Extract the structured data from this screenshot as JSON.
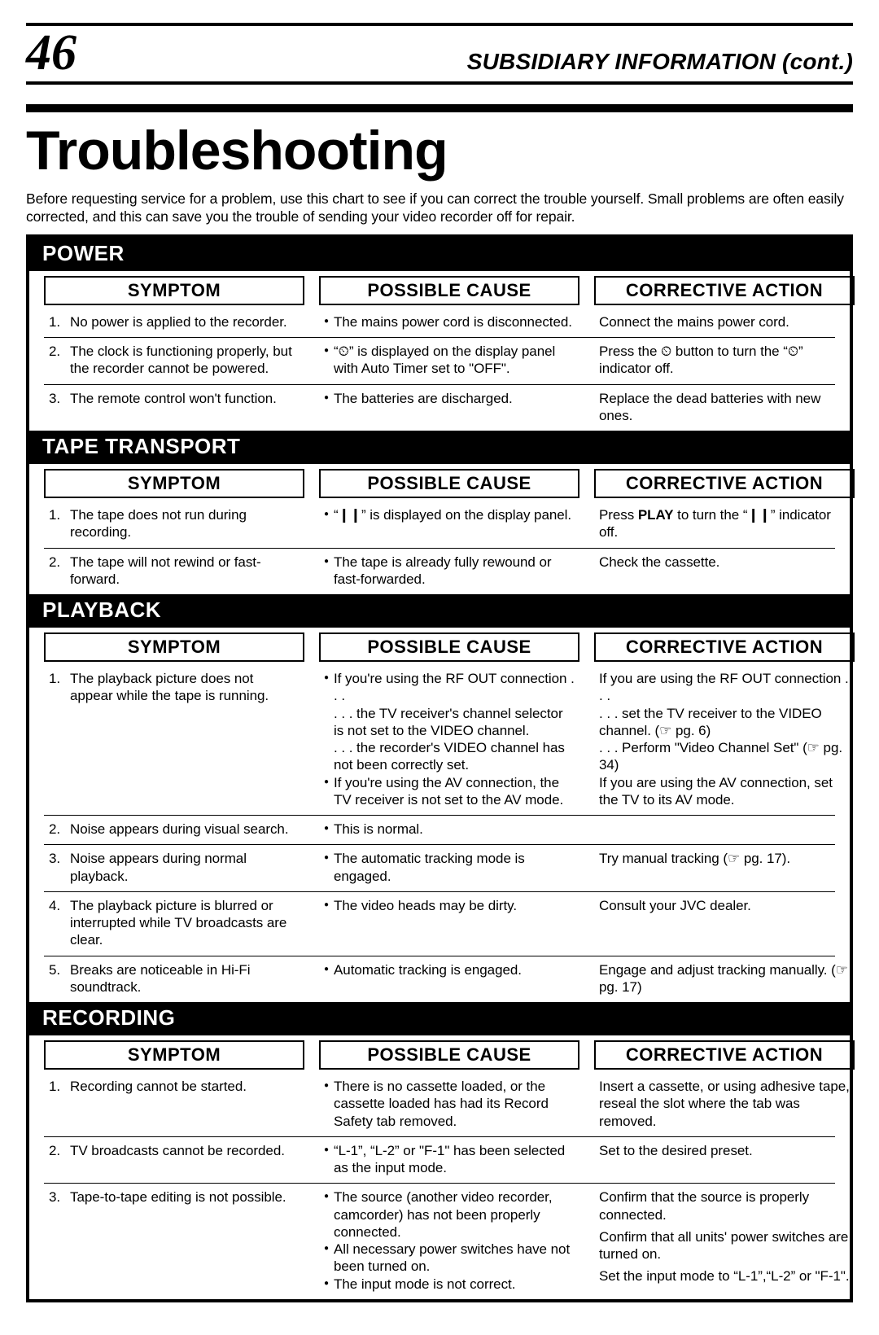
{
  "page_number": "46",
  "section_header": "SUBSIDIARY INFORMATION (cont.)",
  "title": "Troubleshooting",
  "intro": "Before requesting service for a problem, use this chart to see if you can correct the trouble yourself. Small problems are often easily corrected, and this can save you the trouble of sending your video recorder off for repair.",
  "column_labels": {
    "symptom": "SYMPTOM",
    "cause": "POSSIBLE CAUSE",
    "action": "CORRECTIVE ACTION"
  },
  "icons": {
    "timer": "⏲",
    "pause": "❙❙",
    "ref": "☞"
  },
  "categories": [
    {
      "name": "POWER",
      "rows": [
        {
          "n": "1.",
          "symptom": "No power is applied to the recorder.",
          "causes": [
            "The mains power cord is disconnected."
          ],
          "actions": [
            "Connect the mains power cord."
          ]
        },
        {
          "n": "2.",
          "symptom": "The clock is functioning properly, but the recorder cannot be powered.",
          "causes": [
            "“⏲” is displayed on the display panel with Auto Timer set to \"OFF\"."
          ],
          "actions": [
            "Press the ⏲ button to turn the “⏲” indicator off."
          ]
        },
        {
          "n": "3.",
          "symptom": "The remote control won't function.",
          "causes": [
            "The batteries are discharged."
          ],
          "actions": [
            "Replace the dead batteries with new ones."
          ]
        }
      ]
    },
    {
      "name": "TAPE TRANSPORT",
      "rows": [
        {
          "n": "1.",
          "symptom": "The tape does not run during recording.",
          "causes": [
            "“❙❙” is displayed on the display panel."
          ],
          "actions_html": "Press <span class=\"strong\">PLAY</span> to turn the “❙❙” indicator off."
        },
        {
          "n": "2.",
          "symptom": "The tape will not rewind or fast-forward.",
          "causes": [
            "The tape is already fully rewound or fast-forwarded."
          ],
          "actions": [
            "Check the cassette."
          ]
        }
      ]
    },
    {
      "name": "PLAYBACK",
      "rows": [
        {
          "n": "1.",
          "symptom": "The playback picture does not appear while the tape is running.",
          "causes": [
            "If you're using the RF OUT connection . . .\n. . . the TV receiver's channel selector is not set to the VIDEO channel.\n. . . the recorder's VIDEO channel has not been correctly set.",
            "If you're using the AV connection, the TV receiver is not set to the AV mode."
          ],
          "actions_html": "If you are using the RF OUT connection . . .<br>. . . set the TV receiver to the VIDEO channel. (☞ pg. 6)<br>. . . Perform \"Video Channel Set\" (☞ pg. 34)<br>If you are using the AV connection, set the TV to its AV mode."
        },
        {
          "n": "2.",
          "symptom": "Noise appears during visual search.",
          "causes": [
            "This is normal."
          ],
          "actions": []
        },
        {
          "n": "3.",
          "symptom": "Noise appears during normal playback.",
          "causes": [
            "The automatic tracking mode is engaged."
          ],
          "actions_html": "Try manual tracking (☞ pg. 17)."
        },
        {
          "n": "4.",
          "symptom": "The playback picture is blurred or interrupted while TV broadcasts are clear.",
          "causes": [
            "The video heads may be dirty."
          ],
          "actions": [
            "Consult your JVC dealer."
          ]
        },
        {
          "n": "5.",
          "symptom": "Breaks are noticeable in Hi-Fi soundtrack.",
          "causes": [
            "Automatic tracking is engaged."
          ],
          "actions_html": "Engage and adjust tracking manually. (☞ pg. 17)"
        }
      ]
    },
    {
      "name": "RECORDING",
      "rows": [
        {
          "n": "1.",
          "symptom": "Recording cannot be started.",
          "causes": [
            "There is no cassette loaded, or the cassette loaded has had its Record Safety tab removed."
          ],
          "actions": [
            "Insert a cassette, or using adhesive tape, reseal the slot where the tab was removed."
          ]
        },
        {
          "n": "2.",
          "symptom": "TV broadcasts cannot be recorded.",
          "causes": [
            "“L-1”, “L-2” or \"F-1\" has been selected as the input mode."
          ],
          "actions": [
            "Set to the desired preset."
          ]
        },
        {
          "n": "3.",
          "symptom": "Tape-to-tape editing is not possible.",
          "causes": [
            "The source (another video recorder, camcorder) has not been properly connected.",
            "All necessary power switches have not been turned on.",
            "The input mode is not correct."
          ],
          "actions": [
            "Confirm that the source is properly connected.",
            "Confirm that all units' power switches are turned on.",
            "Set the input mode to “L-1”,“L-2” or \"F-1\"."
          ],
          "action_spaced": true
        }
      ]
    }
  ]
}
